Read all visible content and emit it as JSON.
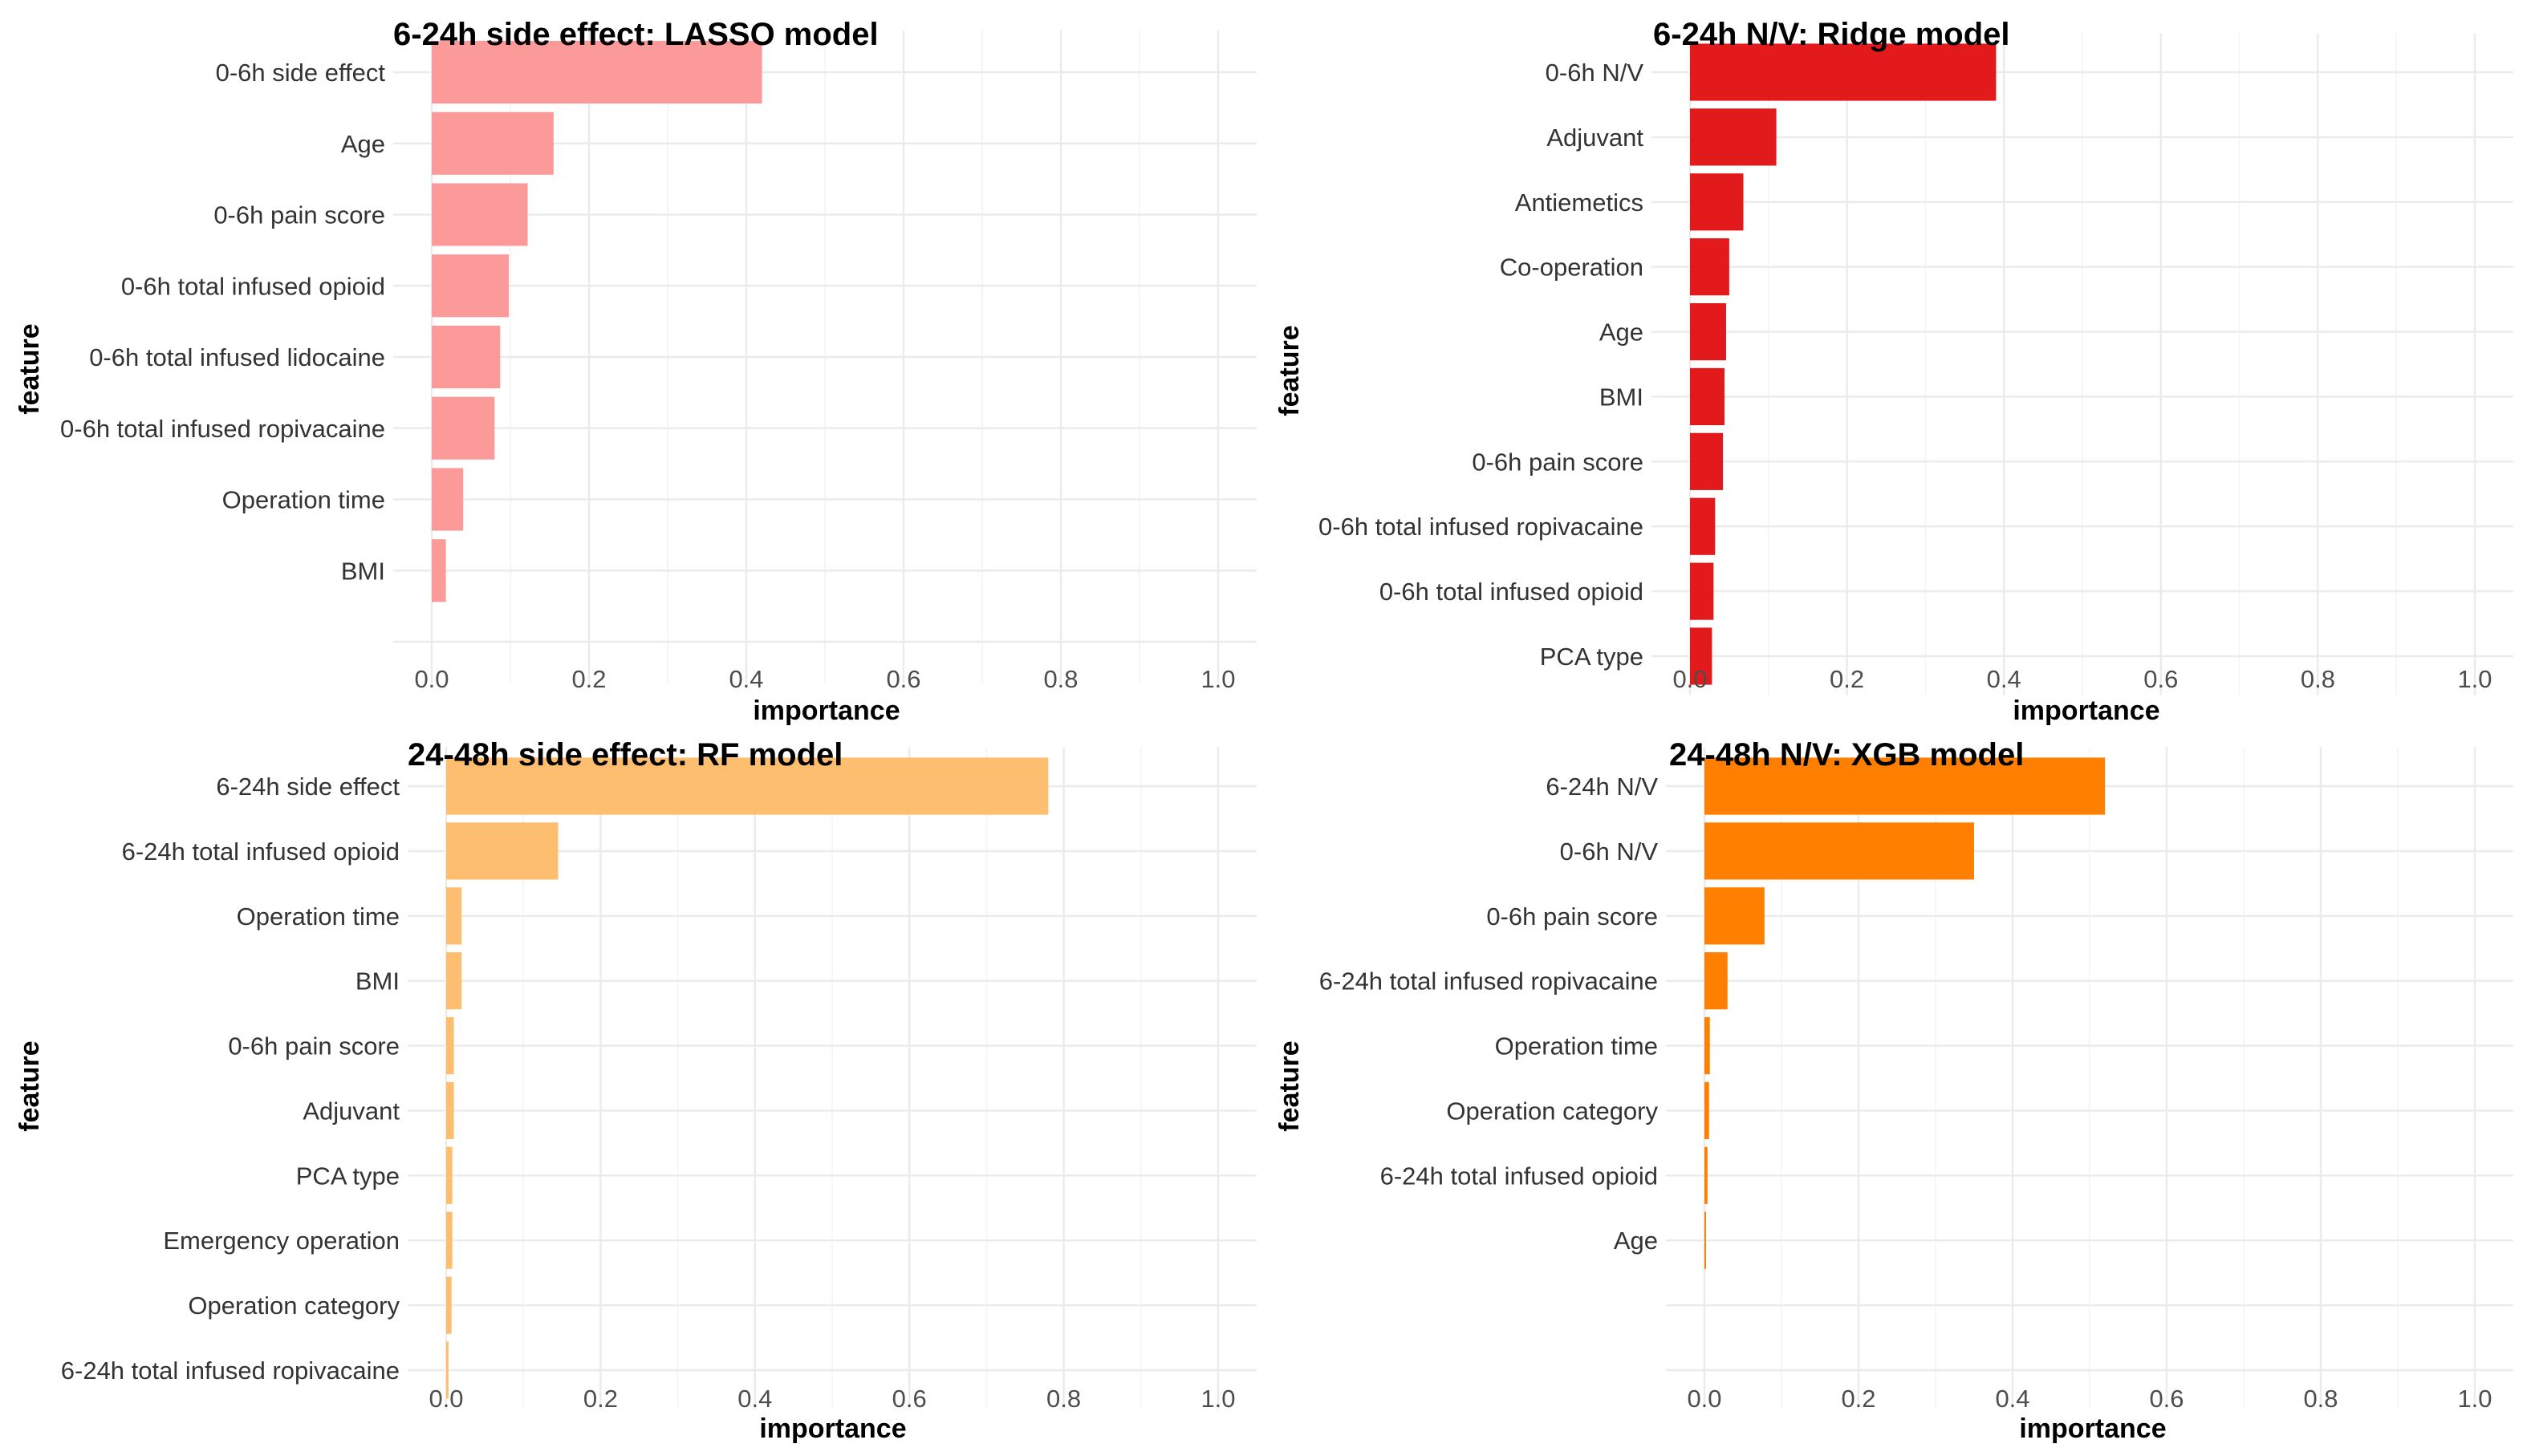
{
  "chart_data": [
    {
      "type": "bar",
      "orientation": "horizontal",
      "title": "6-24h side effect: LASSO model",
      "xlabel": "importance",
      "ylabel": "feature",
      "xlim": [
        0,
        1.0
      ],
      "xticks": [
        "0.0",
        "0.2",
        "0.4",
        "0.6",
        "0.8",
        "1.0"
      ],
      "grid": true,
      "color": "#fc9a9a",
      "categories": [
        "0-6h side effect",
        "Age",
        "0-6h pain score",
        "0-6h total infused opioid",
        "0-6h total infused lidocaine",
        "0-6h total infused ropivacaine",
        "Operation time",
        "BMI",
        ""
      ],
      "values": [
        0.42,
        0.155,
        0.122,
        0.098,
        0.087,
        0.08,
        0.04,
        0.018,
        0
      ]
    },
    {
      "type": "bar",
      "orientation": "horizontal",
      "title": "6-24h N/V: Ridge model",
      "xlabel": "importance",
      "ylabel": "feature",
      "xlim": [
        0,
        1.0
      ],
      "xticks": [
        "0.0",
        "0.2",
        "0.4",
        "0.6",
        "0.8",
        "1.0"
      ],
      "grid": true,
      "color": "#e31a1c",
      "categories": [
        "0-6h N/V",
        "Adjuvant",
        "Antiemetics",
        "Co-operation",
        "Age",
        "BMI",
        "0-6h pain score",
        "0-6h total infused ropivacaine",
        "0-6h total infused opioid",
        "PCA type"
      ],
      "values": [
        0.39,
        0.11,
        0.068,
        0.05,
        0.046,
        0.044,
        0.042,
        0.032,
        0.03,
        0.028
      ]
    },
    {
      "type": "bar",
      "orientation": "horizontal",
      "title": "24-48h side effect: RF model",
      "xlabel": "importance",
      "ylabel": "feature",
      "xlim": [
        0,
        1.0
      ],
      "xticks": [
        "0.0",
        "0.2",
        "0.4",
        "0.6",
        "0.8",
        "1.0"
      ],
      "grid": true,
      "color": "#fdbf6f",
      "categories": [
        "6-24h side effect",
        "6-24h total infused opioid",
        "Operation time",
        "BMI",
        "0-6h pain score",
        "Adjuvant",
        "PCA type",
        "Emergency operation",
        "Operation category",
        "6-24h total infused ropivacaine"
      ],
      "values": [
        0.78,
        0.145,
        0.02,
        0.02,
        0.01,
        0.01,
        0.008,
        0.008,
        0.007,
        0.003
      ]
    },
    {
      "type": "bar",
      "orientation": "horizontal",
      "title": "24-48h N/V: XGB model",
      "xlabel": "importance",
      "ylabel": "feature",
      "xlim": [
        0,
        1.0
      ],
      "xticks": [
        "0.0",
        "0.2",
        "0.4",
        "0.6",
        "0.8",
        "1.0"
      ],
      "grid": true,
      "color": "#ff7f00",
      "categories": [
        "6-24h N/V",
        "0-6h N/V",
        "0-6h pain score",
        "6-24h total infused ropivacaine",
        "Operation time",
        "Operation category",
        "6-24h total infused opioid",
        "Age",
        "",
        ""
      ],
      "values": [
        0.52,
        0.35,
        0.078,
        0.03,
        0.007,
        0.006,
        0.004,
        0.002,
        0,
        0
      ]
    }
  ]
}
